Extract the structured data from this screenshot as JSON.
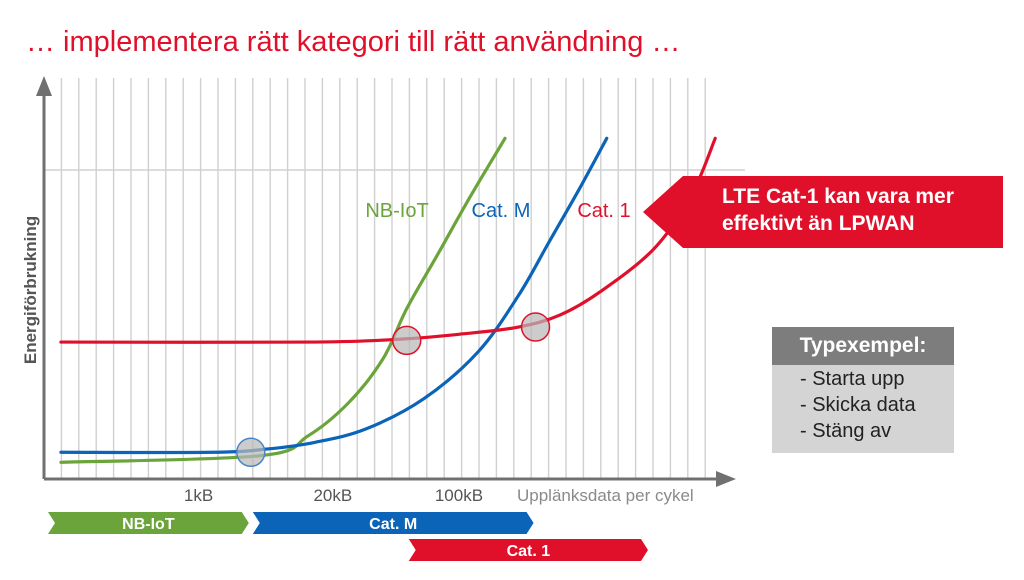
{
  "title": "… implementera rätt kategori till rätt användning …",
  "callout": {
    "line1": "LTE Cat-1 kan vara mer",
    "line2": "effektivt än LPWAN"
  },
  "typexempel": {
    "heading": "Typexempel:",
    "items": [
      "- Starta upp",
      "- Skicka data",
      "- Stäng av"
    ]
  },
  "colors": {
    "title": "#e0102a",
    "nbiot": "#6aa43a",
    "catm": "#0b64b8",
    "cat1": "#e0102a",
    "grid": "#d0d0d0",
    "axis": "#707070"
  },
  "chart_data": {
    "type": "line",
    "xlabel": "Upplänksdata per cykel",
    "ylabel": "Energiförbrukning",
    "x_ticks": [
      "1kB",
      "20kB",
      "100kB"
    ],
    "series": [
      {
        "name": "NB-IoT",
        "label": "NB-IoT",
        "color": "#6aa43a",
        "points": [
          [
            0.025,
            0.05
          ],
          [
            0.32,
            0.07
          ],
          [
            0.39,
            0.13
          ],
          [
            0.45,
            0.23
          ],
          [
            0.5,
            0.36
          ],
          [
            0.535,
            0.51
          ],
          [
            0.58,
            0.67
          ],
          [
            0.63,
            0.85
          ],
          [
            0.68,
            1.02
          ]
        ]
      },
      {
        "name": "Cat. M",
        "label": "Cat. M",
        "color": "#0b64b8",
        "points": [
          [
            0.025,
            0.08
          ],
          [
            0.25,
            0.08
          ],
          [
            0.33,
            0.09
          ],
          [
            0.4,
            0.11
          ],
          [
            0.475,
            0.15
          ],
          [
            0.56,
            0.24
          ],
          [
            0.64,
            0.38
          ],
          [
            0.7,
            0.55
          ],
          [
            0.745,
            0.71
          ],
          [
            0.79,
            0.87
          ],
          [
            0.83,
            1.02
          ]
        ]
      },
      {
        "name": "Cat. 1",
        "label": "Cat. 1",
        "color": "#e0102a",
        "points": [
          [
            0.025,
            0.41
          ],
          [
            0.4,
            0.41
          ],
          [
            0.535,
            0.42
          ],
          [
            0.62,
            0.435
          ],
          [
            0.7,
            0.455
          ],
          [
            0.76,
            0.49
          ],
          [
            0.82,
            0.56
          ],
          [
            0.9,
            0.69
          ],
          [
            0.955,
            0.85
          ],
          [
            0.99,
            1.02
          ]
        ]
      }
    ],
    "intersections": [
      {
        "x": 0.305,
        "y": 0.08,
        "color": "#4a84c6"
      },
      {
        "x": 0.535,
        "y": 0.415,
        "color": "#e0102a"
      },
      {
        "x": 0.725,
        "y": 0.455,
        "color": "#e0102a"
      }
    ],
    "range_bars": [
      {
        "label": "NB-IoT",
        "color": "#6aa43a",
        "from": 0.0,
        "to": 0.305,
        "row": 0
      },
      {
        "label": "Cat. M",
        "color": "#0b64b8",
        "from": 0.305,
        "to": 0.725,
        "row": 0
      },
      {
        "label": "Cat. 1",
        "color": "#e0102a",
        "from": 0.535,
        "to": 1.0,
        "row": 1
      }
    ]
  }
}
